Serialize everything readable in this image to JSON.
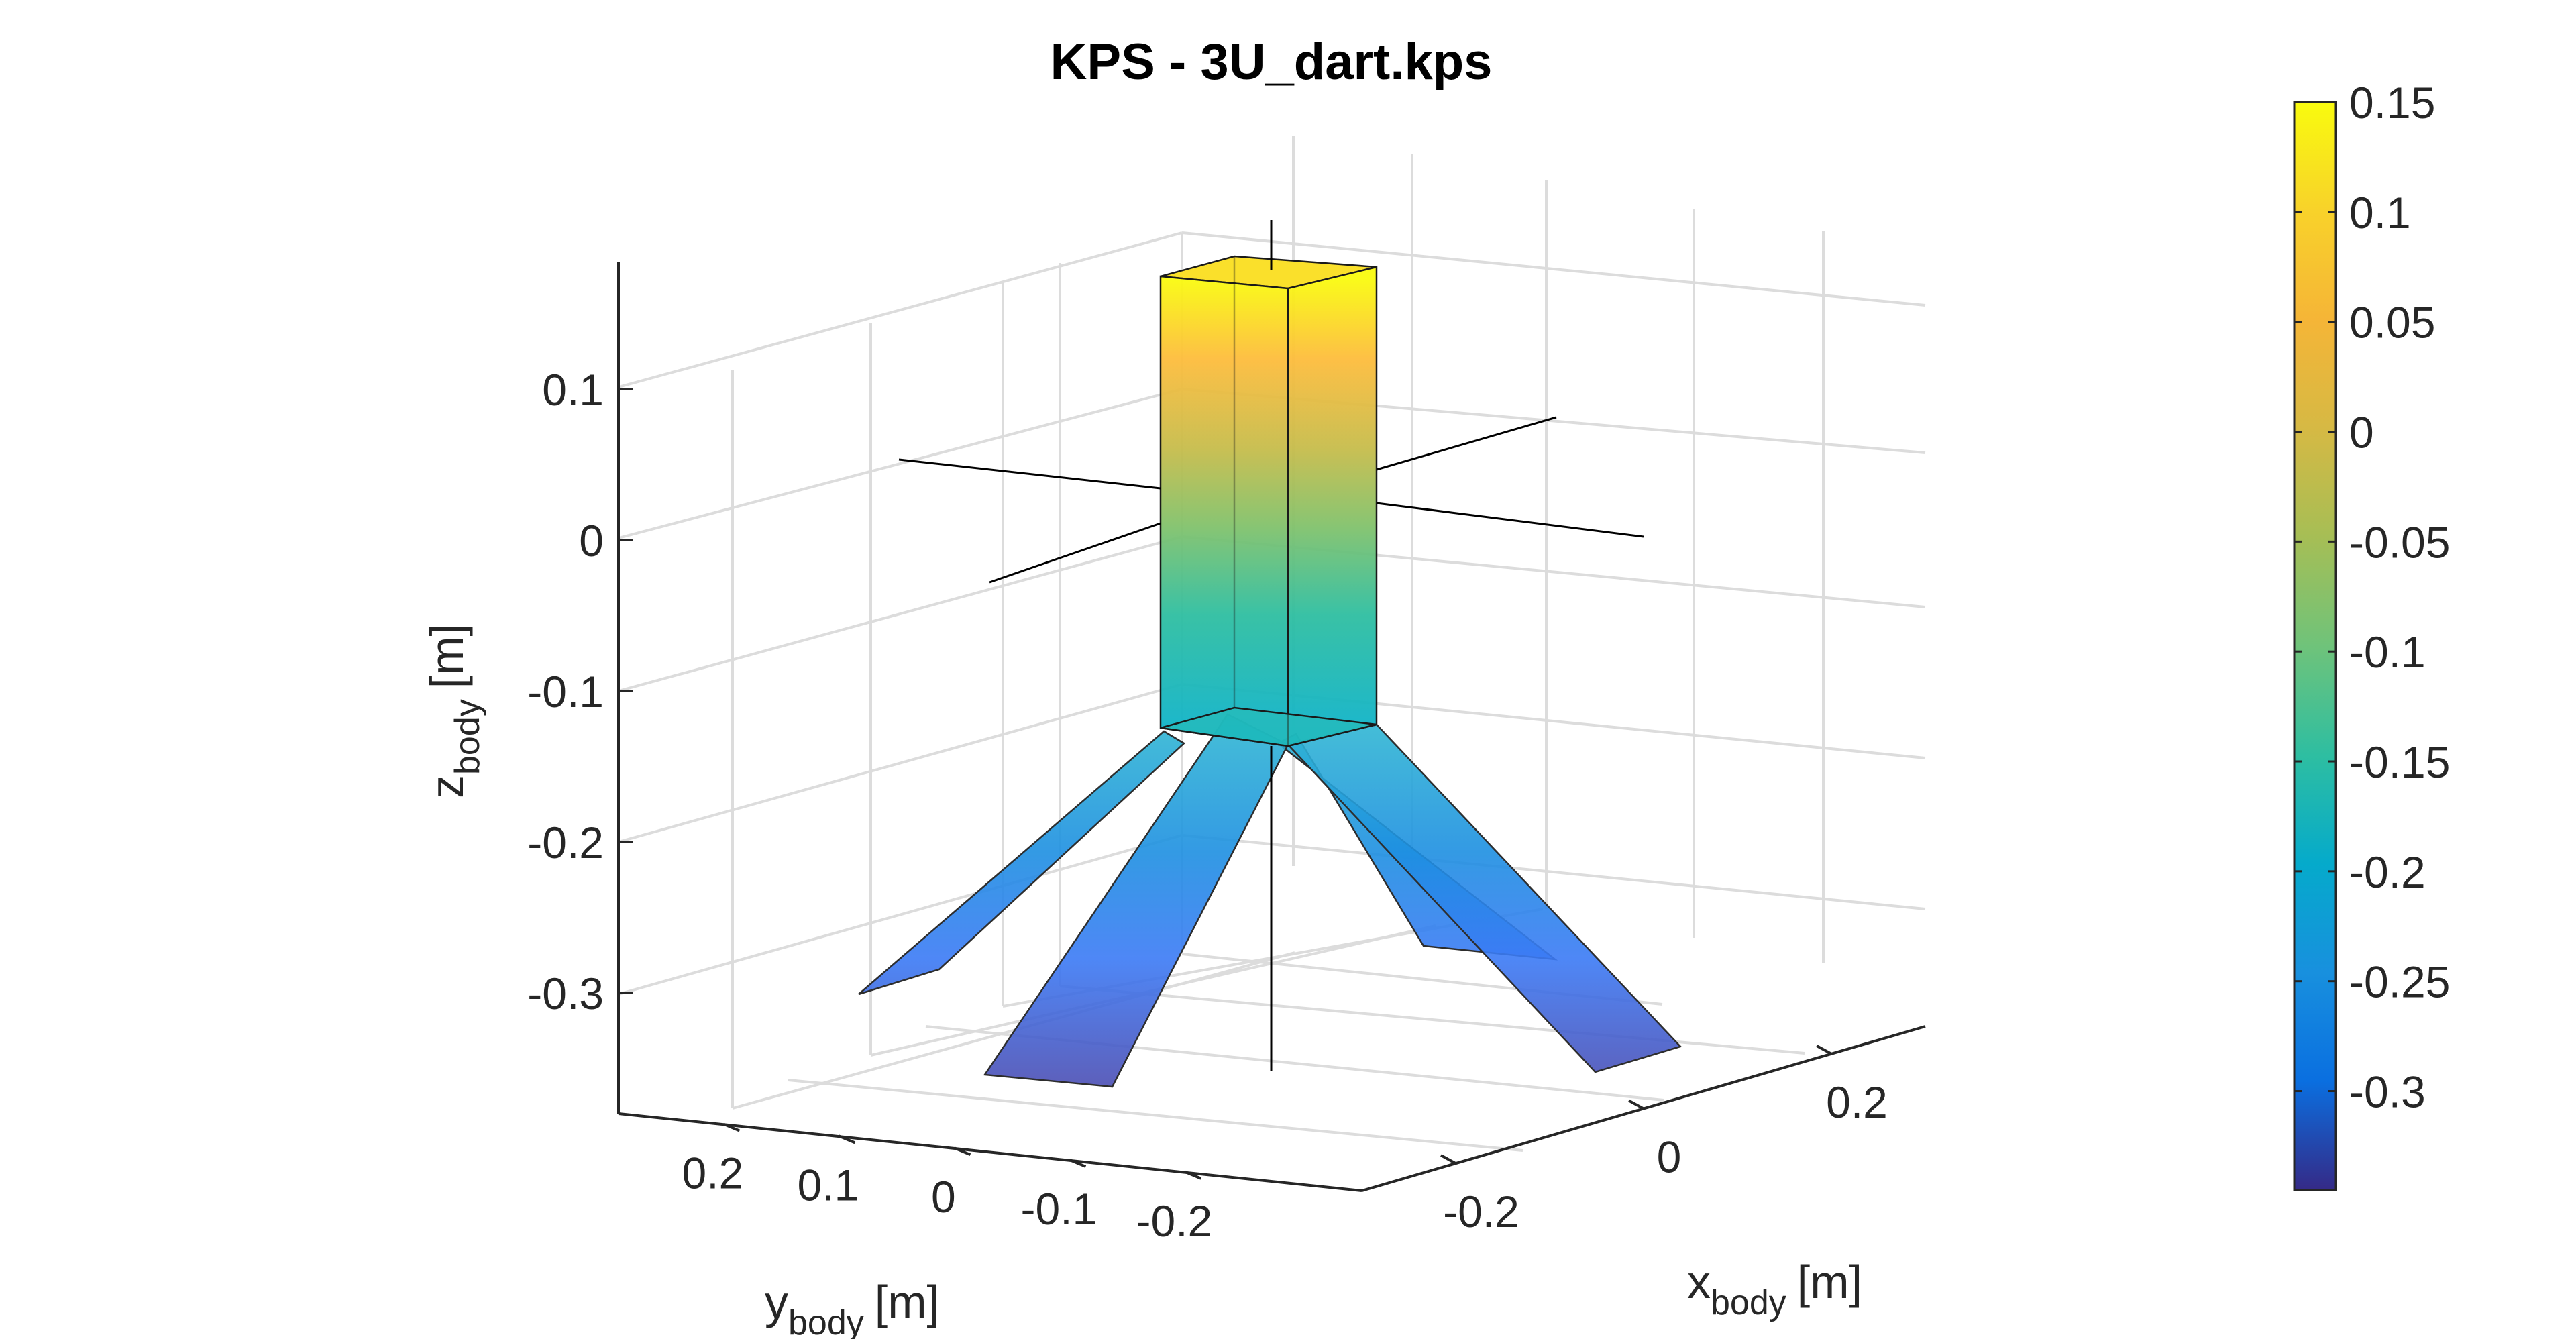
{
  "chart_data": {
    "type": "surface3d",
    "title": "KPS - 3U_dart.kps",
    "axes": {
      "x": {
        "label": "x",
        "subscript": "body",
        "unit": "[m]",
        "ticks": [
          "-0.2",
          "0",
          "0.2"
        ],
        "tick_values": [
          -0.2,
          0,
          0.2
        ]
      },
      "y": {
        "label": "y",
        "subscript": "body",
        "unit": "[m]",
        "ticks": [
          "0.2",
          "0.1",
          "0",
          "-0.1",
          "-0.2"
        ],
        "tick_values": [
          0.2,
          0.1,
          0,
          -0.1,
          -0.2
        ]
      },
      "z": {
        "label": "z",
        "subscript": "body",
        "unit": "[m]",
        "ticks": [
          "0.1",
          "0",
          "-0.1",
          "-0.2",
          "-0.3"
        ],
        "tick_values": [
          0.1,
          0,
          -0.1,
          -0.2,
          -0.3
        ]
      }
    },
    "grid": true,
    "colormap": "parula",
    "colorbar": {
      "position": "right",
      "ticks": [
        "0.15",
        "0.1",
        "0.05",
        "0",
        "-0.05",
        "-0.1",
        "-0.15",
        "-0.2",
        "-0.25",
        "-0.3"
      ],
      "tick_values": [
        0.15,
        0.1,
        0.05,
        0,
        -0.05,
        -0.1,
        -0.15,
        -0.2,
        -0.25,
        -0.3
      ],
      "clim": [
        -0.345,
        0.15
      ]
    },
    "body": {
      "x": [
        -0.05,
        0.05
      ],
      "y": [
        -0.05,
        0.05
      ],
      "z": [
        -0.15,
        0.15
      ]
    },
    "fins": [
      {
        "root_z": -0.15,
        "tip_z": -0.34
      },
      {
        "root_z": -0.15,
        "tip_z": -0.34
      },
      {
        "root_z": -0.15,
        "tip_z": -0.34
      },
      {
        "root_z": -0.15,
        "tip_z": -0.34
      }
    ]
  }
}
